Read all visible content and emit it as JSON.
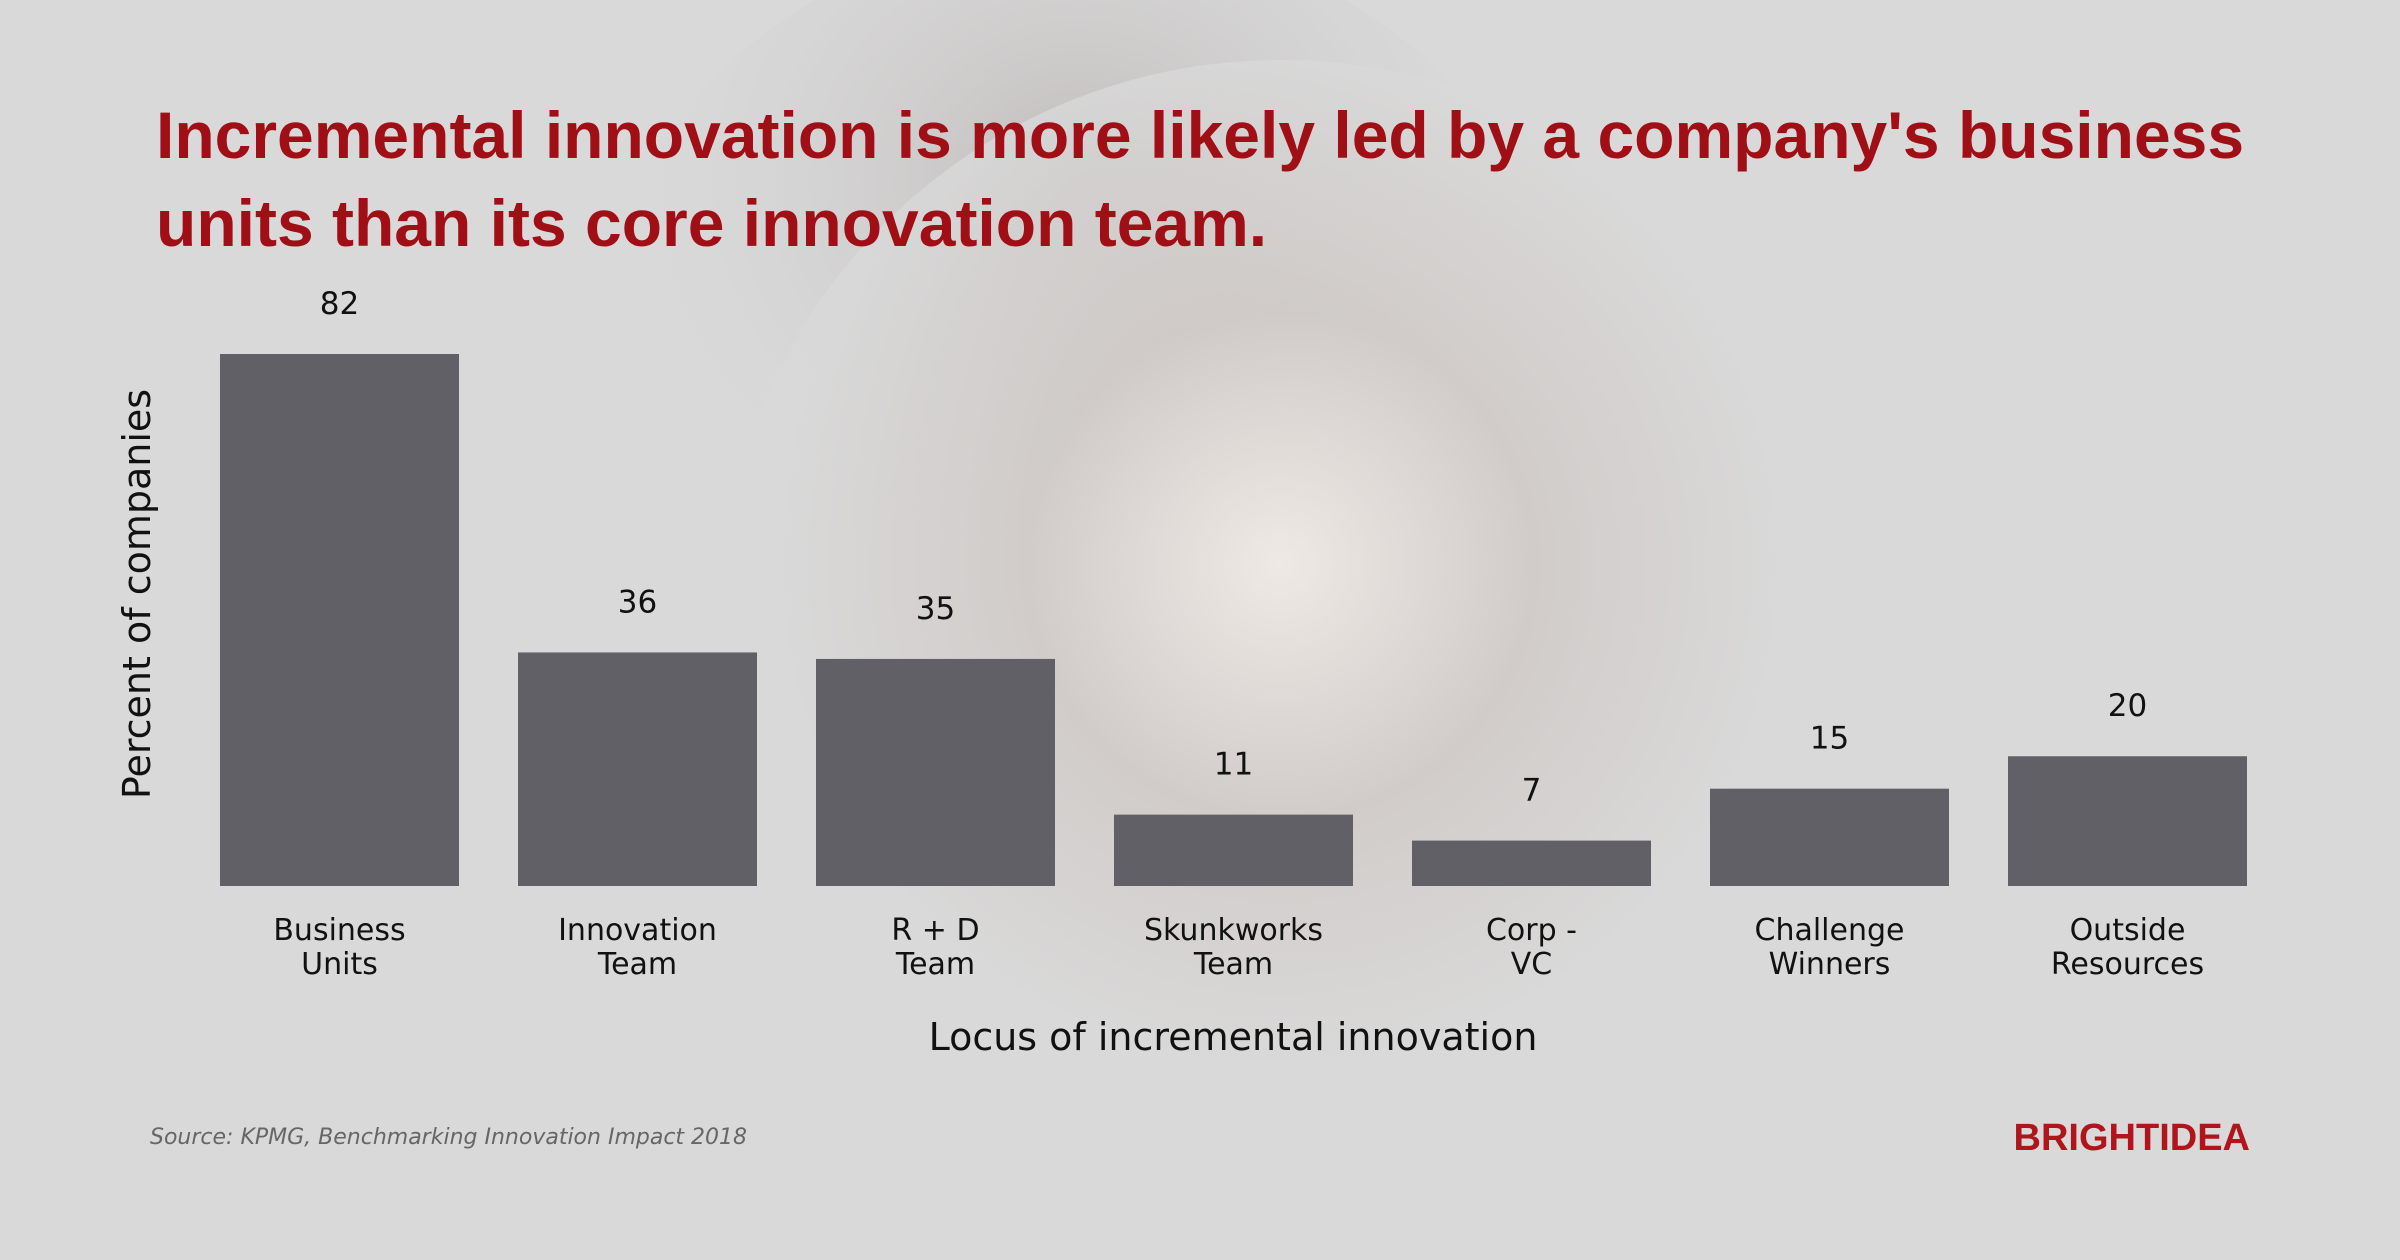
{
  "chart_data": {
    "type": "bar",
    "title": "Incremental innovation is more likely led by a company's business units than its core innovation team.",
    "categories": [
      "Business\nUnits",
      "Innovation\nTeam",
      "R + D\nTeam",
      "Skunkworks\nTeam",
      "Corp -\nVC",
      "Challenge\nWinners",
      "Outside\nResources"
    ],
    "values": [
      82,
      36,
      35,
      11,
      7,
      15,
      20
    ],
    "color": "#606066",
    "ylim": [
      0,
      82
    ],
    "x_label": "Locus of incremental innovation",
    "y_label": "Percent of companies",
    "grid": false
  },
  "footer": {
    "source": "Source: KPMG, Benchmarking Innovation Impact 2018",
    "logo": "BRIGHTIDEA"
  }
}
